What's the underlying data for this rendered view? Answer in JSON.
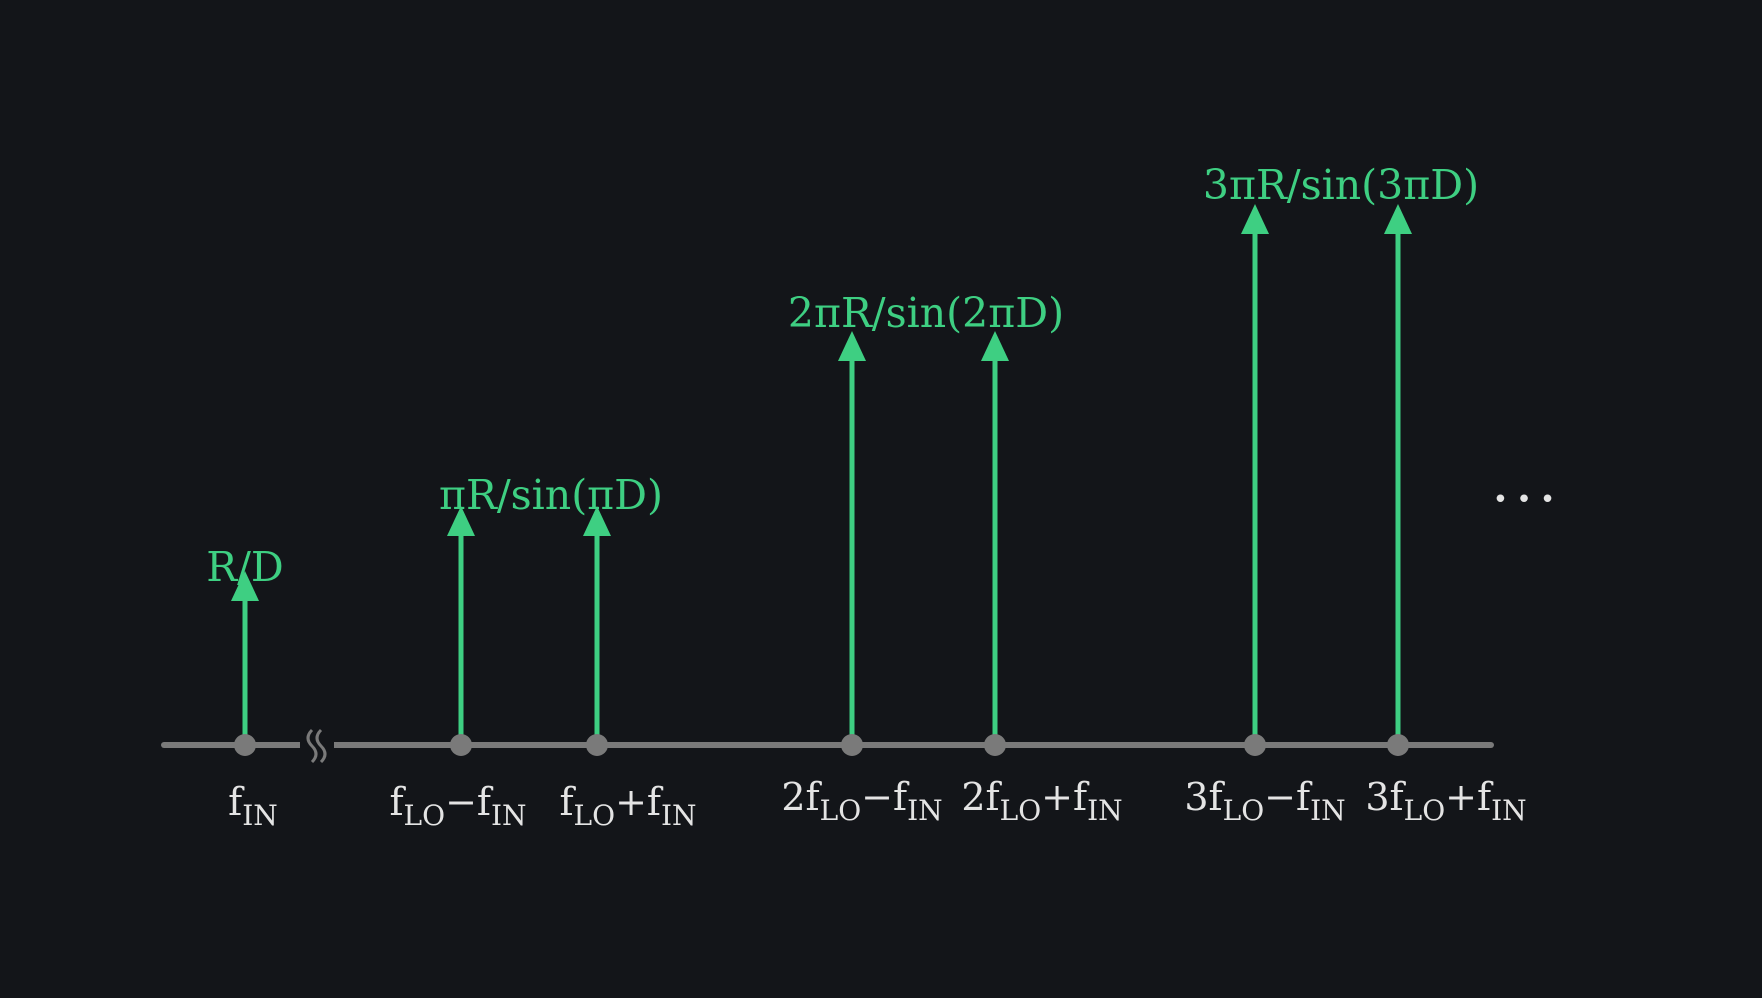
{
  "colors": {
    "background": "#131519",
    "axis": "#7a7a7a",
    "spectral_line": "#3ecf82",
    "tick_text": "#e4e4e4"
  },
  "tick_labels": [
    {
      "coef": "",
      "parts": [
        {
          "t": "f"
        },
        {
          "t": "IN",
          "sub": true
        }
      ]
    },
    {
      "coef": "",
      "parts": [
        {
          "t": "f"
        },
        {
          "t": "LO",
          "sub": true
        },
        {
          "t": "−f"
        },
        {
          "t": "IN",
          "sub": true
        }
      ]
    },
    {
      "coef": "",
      "parts": [
        {
          "t": "f"
        },
        {
          "t": "LO",
          "sub": true
        },
        {
          "t": "+f"
        },
        {
          "t": "IN",
          "sub": true
        }
      ]
    },
    {
      "coef": "2",
      "parts": [
        {
          "t": "f"
        },
        {
          "t": "LO",
          "sub": true
        },
        {
          "t": "−f"
        },
        {
          "t": "IN",
          "sub": true
        }
      ]
    },
    {
      "coef": "2",
      "parts": [
        {
          "t": "f"
        },
        {
          "t": "LO",
          "sub": true
        },
        {
          "t": "+f"
        },
        {
          "t": "IN",
          "sub": true
        }
      ]
    },
    {
      "coef": "3",
      "parts": [
        {
          "t": "f"
        },
        {
          "t": "LO",
          "sub": true
        },
        {
          "t": "−f"
        },
        {
          "t": "IN",
          "sub": true
        }
      ]
    },
    {
      "coef": "3",
      "parts": [
        {
          "t": "f"
        },
        {
          "t": "LO",
          "sub": true
        },
        {
          "t": "+f"
        },
        {
          "t": "IN",
          "sub": true
        }
      ]
    }
  ],
  "amplitude_labels": {
    "input": "R/D",
    "first": "πR/sin(πD)",
    "second": "2πR/sin(2πD)",
    "third": "3πR/sin(3πD)"
  },
  "continuation": "• • •",
  "axis_break_glyph": "≈"
}
